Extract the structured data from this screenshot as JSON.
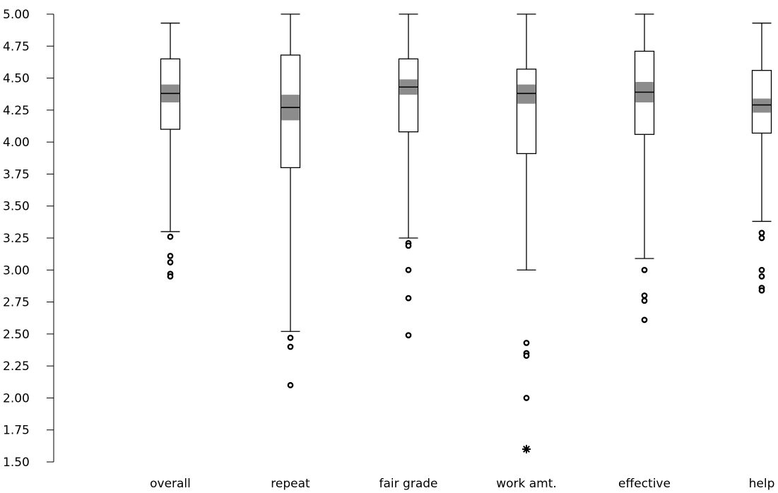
{
  "chart_data": {
    "type": "boxplot",
    "title": "",
    "xlabel": "",
    "ylabel": "",
    "ylim": [
      1.5,
      5.0
    ],
    "y_ticks": [
      "1.50",
      "1.75",
      "2.00",
      "2.25",
      "2.50",
      "2.75",
      "3.00",
      "3.25",
      "3.50",
      "3.75",
      "4.00",
      "4.25",
      "4.50",
      "4.75",
      "5.00"
    ],
    "grid": false,
    "legend": "none",
    "colors": {
      "box_stroke": "#000000",
      "median_ci": "#8c8c8c",
      "outlier": "#000000"
    },
    "categories": [
      "overall",
      "repeat",
      "fair grade",
      "work amt.",
      "effective",
      "help"
    ],
    "boxes": [
      {
        "q1": 4.1,
        "median": 4.38,
        "q3": 4.65,
        "whisker_low": 3.3,
        "whisker_high": 4.93,
        "ci_low": 4.31,
        "ci_high": 4.45,
        "outliers": [
          3.26,
          3.11,
          3.06,
          2.97,
          2.95
        ]
      },
      {
        "q1": 3.8,
        "median": 4.27,
        "q3": 4.68,
        "whisker_low": 2.52,
        "whisker_high": 5.0,
        "ci_low": 4.17,
        "ci_high": 4.37,
        "outliers": [
          2.47,
          2.4,
          2.1
        ]
      },
      {
        "q1": 4.08,
        "median": 4.43,
        "q3": 4.65,
        "whisker_low": 3.25,
        "whisker_high": 5.0,
        "ci_low": 4.37,
        "ci_high": 4.49,
        "outliers": [
          3.21,
          3.19,
          3.0,
          2.78,
          2.49
        ]
      },
      {
        "q1": 3.91,
        "median": 4.38,
        "q3": 4.57,
        "whisker_low": 3.0,
        "whisker_high": 5.0,
        "ci_low": 4.3,
        "ci_high": 4.45,
        "outliers": [
          2.43,
          2.35,
          2.33,
          2.0
        ],
        "extreme_outliers": [
          1.6
        ]
      },
      {
        "q1": 4.06,
        "median": 4.39,
        "q3": 4.71,
        "whisker_low": 3.09,
        "whisker_high": 5.0,
        "ci_low": 4.31,
        "ci_high": 4.47,
        "outliers": [
          3.0,
          2.8,
          2.76,
          2.61
        ]
      },
      {
        "q1": 4.07,
        "median": 4.29,
        "q3": 4.56,
        "whisker_low": 3.38,
        "whisker_high": 4.93,
        "ci_low": 4.23,
        "ci_high": 4.34,
        "outliers": [
          3.29,
          3.25,
          3.0,
          2.95,
          2.86,
          2.84
        ]
      }
    ]
  }
}
